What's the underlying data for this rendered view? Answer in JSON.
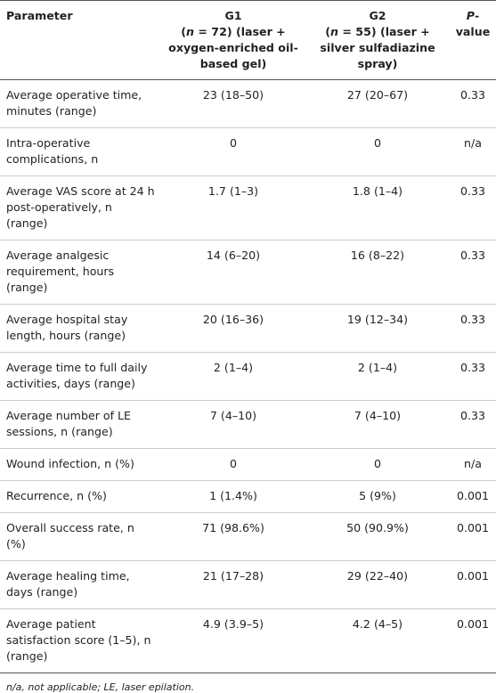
{
  "table": {
    "header": [
      {
        "text": "Parameter"
      },
      {
        "title": "G1",
        "open": "(",
        "italic": "n",
        "rest": " = 72) (laser + oxygen-enriched oil-based gel)"
      },
      {
        "title": "G2",
        "open": "(",
        "italic": "n",
        "rest": " = 55) (laser + silver sulfadiazine spray)"
      },
      {
        "italic": "P",
        "rest": "-value"
      }
    ],
    "rows": [
      [
        "Average operative time, minutes (range)",
        "23 (18–50)",
        "27 (20–67)",
        "0.33"
      ],
      [
        "Intra-operative complications, n",
        "0",
        "0",
        "n/a"
      ],
      [
        "Average VAS score at 24 h post-operatively, n (range)",
        "1.7 (1–3)",
        "1.8 (1–4)",
        "0.33"
      ],
      [
        "Average analgesic requirement, hours (range)",
        "14 (6–20)",
        "16 (8–22)",
        "0.33"
      ],
      [
        "Average hospital stay length, hours (range)",
        "20 (16–36)",
        "19 (12–34)",
        "0.33"
      ],
      [
        "Average time to full daily activities, days (range)",
        "2 (1–4)",
        "2 (1–4)",
        "0.33"
      ],
      [
        "Average number of LE sessions, n (range)",
        "7 (4–10)",
        "7 (4–10)",
        "0.33"
      ],
      [
        "Wound infection, n (%)",
        "0",
        "0",
        "n/a"
      ],
      [
        "Recurrence, n (%)",
        "1 (1.4%)",
        "5 (9%)",
        "0.001"
      ],
      [
        "Overall success rate, n (%)",
        "71 (98.6%)",
        "50 (90.9%)",
        "0.001"
      ],
      [
        "Average healing time, days (range)",
        "21 (17–28)",
        "29 (22–40)",
        "0.001"
      ],
      [
        "Average patient satisfaction score (1–5), n (range)",
        "4.9 (3.9–5)",
        "4.2 (4–5)",
        "0.001"
      ]
    ],
    "footnote": "n/a, not applicable; LE, laser epilation."
  }
}
